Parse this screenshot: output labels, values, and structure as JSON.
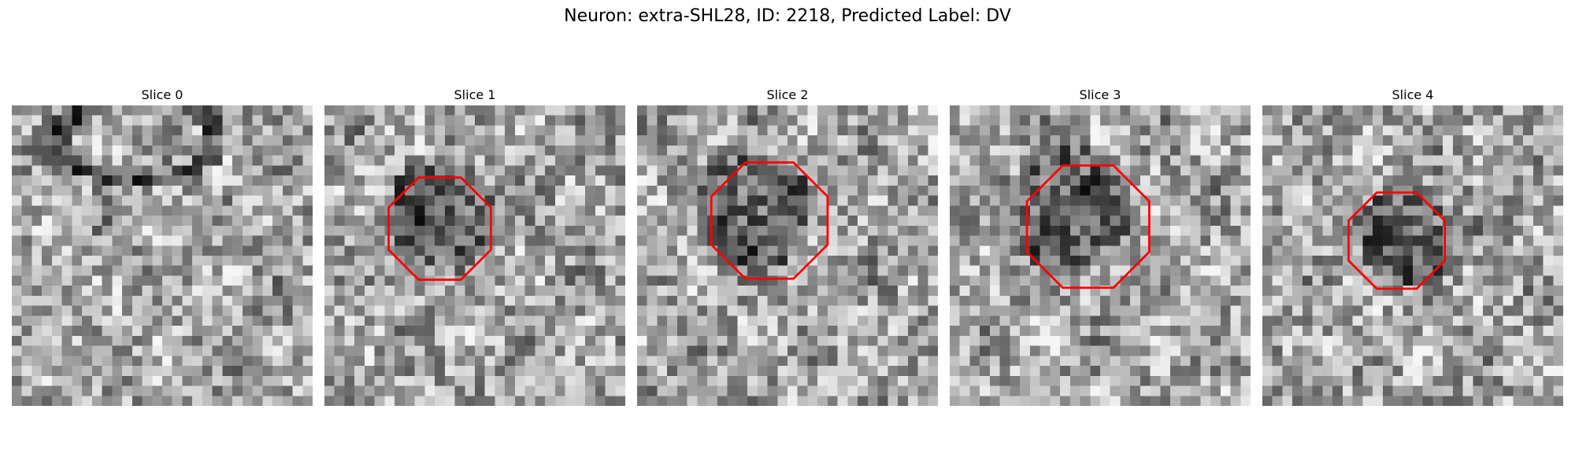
{
  "title": "Neuron: extra-SHL28, ID: 2218, Predicted Label: DV",
  "overlay_color": "#ff0000",
  "panels": [
    {
      "label": "Slice 0",
      "seed": 11,
      "has_outline": false
    },
    {
      "label": "Slice 1",
      "seed": 23,
      "has_outline": true
    },
    {
      "label": "Slice 2",
      "seed": 37,
      "has_outline": true
    },
    {
      "label": "Slice 3",
      "seed": 51,
      "has_outline": true
    },
    {
      "label": "Slice 4",
      "seed": 67,
      "has_outline": true
    }
  ]
}
